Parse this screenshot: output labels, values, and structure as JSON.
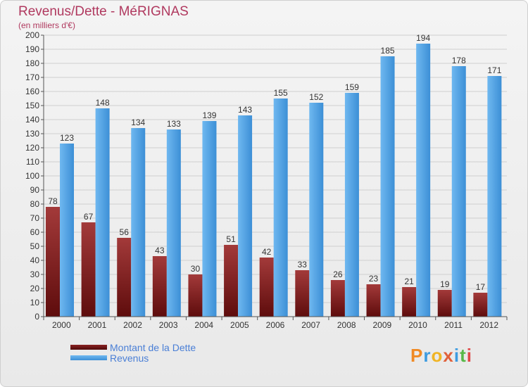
{
  "title": "Revenus/Dette - MéRIGNAS",
  "subtitle": "(en milliers d'€)",
  "colors": {
    "dette": "#7a1a1a",
    "revenus": "#4fa3e6",
    "title": "#b0395f",
    "legend_text": "#4a7fd6"
  },
  "legend": {
    "dette_label": "Montant de la Dette",
    "revenus_label": "Revenus"
  },
  "logo": {
    "text": "Proxiti"
  },
  "chart_data": {
    "type": "bar",
    "title": "Revenus/Dette - MéRIGNAS",
    "subtitle": "(en milliers d'€)",
    "categories": [
      "2000",
      "2001",
      "2002",
      "2003",
      "2004",
      "2005",
      "2006",
      "2007",
      "2008",
      "2009",
      "2010",
      "2011",
      "2012"
    ],
    "series": [
      {
        "name": "Montant de la Dette",
        "values": [
          78,
          67,
          56,
          43,
          30,
          51,
          42,
          33,
          26,
          23,
          21,
          19,
          17
        ]
      },
      {
        "name": "Revenus",
        "values": [
          123,
          148,
          134,
          133,
          139,
          143,
          155,
          152,
          159,
          185,
          194,
          178,
          171
        ]
      }
    ],
    "ylim": [
      0,
      200
    ],
    "yticks": [
      0,
      10,
      20,
      30,
      40,
      50,
      60,
      70,
      80,
      90,
      100,
      110,
      120,
      130,
      140,
      150,
      160,
      170,
      180,
      190,
      200
    ],
    "grid": true,
    "legend_position": "bottom-left"
  }
}
